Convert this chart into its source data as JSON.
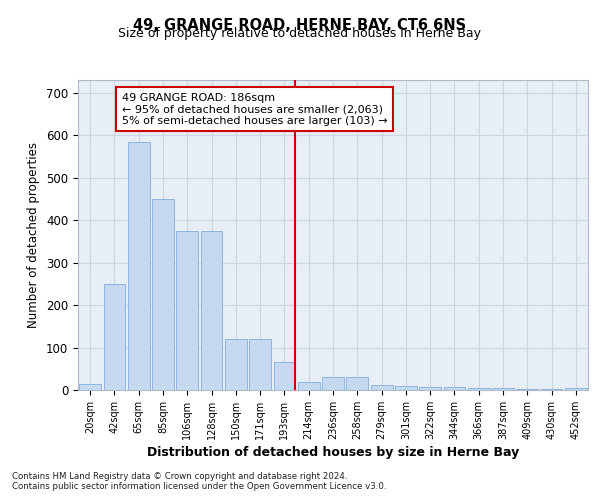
{
  "title": "49, GRANGE ROAD, HERNE BAY, CT6 6NS",
  "subtitle": "Size of property relative to detached houses in Herne Bay",
  "xlabel": "Distribution of detached houses by size in Herne Bay",
  "ylabel": "Number of detached properties",
  "categories": [
    "20sqm",
    "42sqm",
    "65sqm",
    "85sqm",
    "106sqm",
    "128sqm",
    "150sqm",
    "171sqm",
    "193sqm",
    "214sqm",
    "236sqm",
    "258sqm",
    "279sqm",
    "301sqm",
    "322sqm",
    "344sqm",
    "366sqm",
    "387sqm",
    "409sqm",
    "430sqm",
    "452sqm"
  ],
  "values": [
    15,
    250,
    585,
    450,
    375,
    375,
    120,
    120,
    65,
    20,
    30,
    30,
    12,
    10,
    8,
    7,
    5,
    4,
    3,
    2,
    5
  ],
  "bar_color": "#c5d9f1",
  "bar_edge_color": "#8db4e2",
  "vline_color": "#cc0000",
  "vline_index": 8,
  "annotation_text": "49 GRANGE ROAD: 186sqm\n← 95% of detached houses are smaller (2,063)\n5% of semi-detached houses are larger (103) →",
  "annotation_box_color": "#cc0000",
  "ylim": [
    0,
    730
  ],
  "yticks": [
    0,
    100,
    200,
    300,
    400,
    500,
    600,
    700
  ],
  "grid_color": "#cdd5e0",
  "bg_color": "#e8eef5",
  "footer1": "Contains HM Land Registry data © Crown copyright and database right 2024.",
  "footer2": "Contains public sector information licensed under the Open Government Licence v3.0."
}
